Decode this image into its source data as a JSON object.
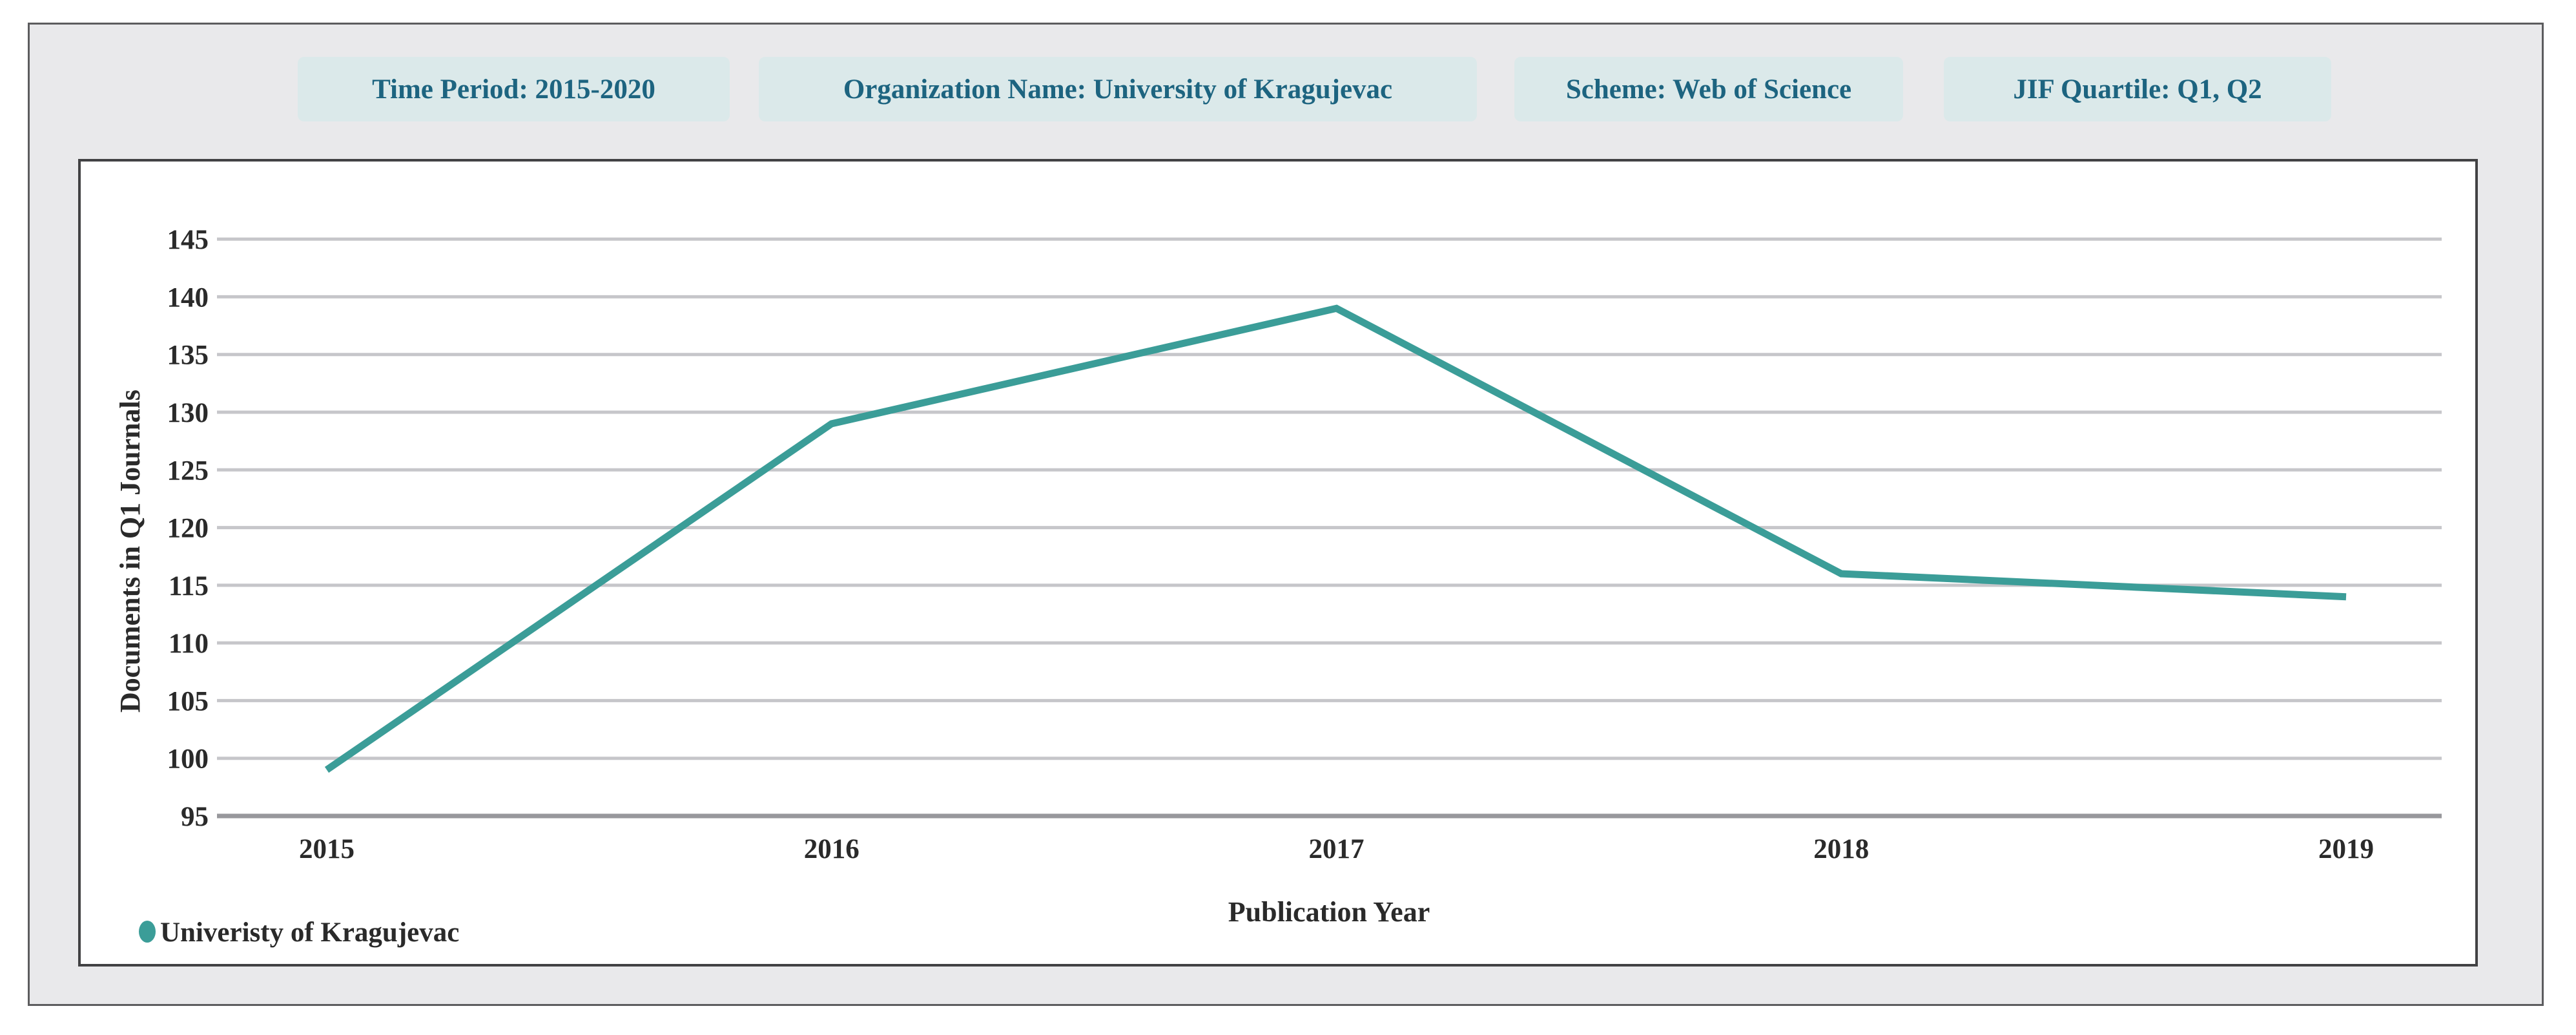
{
  "filters": [
    {
      "label": "Time Period: 2015-2020"
    },
    {
      "label": "Organization Name: University of Kragujevac"
    },
    {
      "label": "Scheme: Web of Science"
    },
    {
      "label": "JIF Quartile: Q1, Q2"
    }
  ],
  "chart_data": {
    "type": "line",
    "x": [
      "2015",
      "2016",
      "2017",
      "2018",
      "2019"
    ],
    "series": [
      {
        "name": "Univeristy of Kragujevac",
        "values": [
          99,
          129,
          139,
          116,
          114
        ]
      }
    ],
    "title": "",
    "xlabel": "Publication Year",
    "ylabel": "Documents in Q1 Journals",
    "ylim": [
      95,
      145
    ],
    "yticks": [
      95,
      100,
      105,
      110,
      115,
      120,
      125,
      130,
      135,
      140,
      145
    ],
    "grid": true,
    "legend_position": "bottom-left"
  },
  "colors": {
    "line": "#3b9d98",
    "grid": "#c6c6ca",
    "axis": "#98989c",
    "badge_bg": "#dbe9ea",
    "badge_text": "#1d6480",
    "text": "#2a2a2a"
  }
}
